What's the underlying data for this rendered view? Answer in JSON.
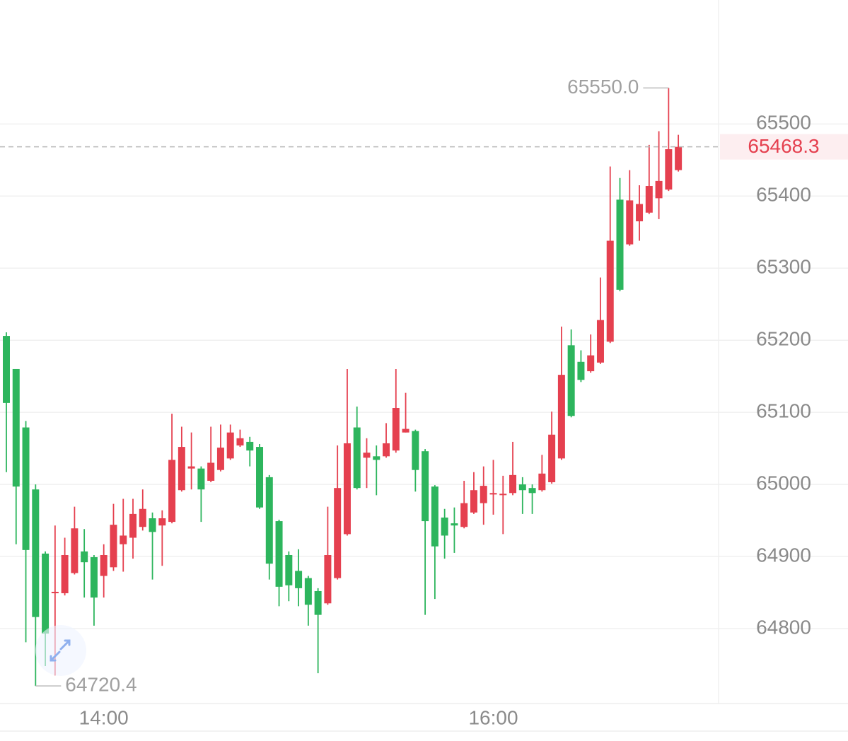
{
  "chart_data": {
    "type": "candlestick",
    "categories": [
      null,
      null,
      null,
      null,
      null,
      null,
      null,
      null,
      null,
      null,
      "14:00",
      null,
      null,
      null,
      null,
      null,
      null,
      null,
      null,
      null,
      null,
      null,
      null,
      null,
      null,
      null,
      null,
      null,
      null,
      null,
      null,
      null,
      null,
      null,
      null,
      null,
      null,
      null,
      null,
      null,
      null,
      null,
      null,
      null,
      null,
      null,
      null,
      null,
      null,
      null,
      "16:00",
      null,
      null,
      null,
      null,
      null,
      null,
      null,
      null,
      null,
      null,
      null,
      null,
      null,
      null,
      null,
      null,
      null,
      null,
      null
    ],
    "open": [
      65206,
      65160,
      65079,
      64993,
      64904,
      64849,
      64849,
      64877,
      64907,
      64899,
      64873,
      64885,
      64917,
      64926,
      64941,
      64953,
      64943,
      64948,
      64992,
      65022,
      65022,
      65005,
      65020,
      65036,
      65054,
      65059,
      65052,
      65010,
      64949,
      64902,
      64880,
      64870,
      64852,
      64835,
      64870,
      64931,
      65079,
      65037,
      65039,
      65039,
      65047,
      65072,
      65074,
      65046,
      64997,
      64954,
      64946,
      64941,
      64961,
      64974,
      64986,
      64986,
      64988,
      65000,
      64995,
      64992,
      65003,
      65036,
      65193,
      65170,
      65157,
      65169,
      65198,
      65395,
      65333,
      65365,
      65377,
      65397,
      65409,
      65436
    ],
    "high": [
      65211,
      65160,
      65088,
      65000,
      64907,
      64943,
      64926,
      64969,
      64938,
      64902,
      64917,
      64973,
      64980,
      64980,
      64993,
      64961,
      64964,
      65098,
      65080,
      65072,
      65025,
      65080,
      65083,
      65083,
      65076,
      65066,
      65056,
      65013,
      64951,
      64907,
      64910,
      64873,
      64856,
      64969,
      65054,
      65160,
      65108,
      65064,
      65054,
      65085,
      65160,
      65127,
      65076,
      65049,
      64999,
      64966,
      64968,
      65005,
      65017,
      65025,
      65034,
      65012,
      65059,
      65010,
      65000,
      65041,
      65101,
      65219,
      65215,
      65186,
      65208,
      65287,
      65441,
      65425,
      65436,
      65415,
      65471,
      65490,
      65550,
      65485
    ],
    "low": [
      65017,
      64917,
      64781,
      64720.4,
      64748,
      64735,
      64846,
      64875,
      64843,
      64804,
      64843,
      64880,
      64879,
      64897,
      64936,
      64868,
      64887,
      64946,
      64990,
      64993,
      64948,
      65003,
      65018,
      65034,
      65052,
      65025,
      64966,
      64868,
      64831,
      64838,
      64831,
      64804,
      64738,
      64833,
      64868,
      64929,
      64993,
      64995,
      64985,
      65037,
      65044,
      65072,
      64990,
      64819,
      64841,
      64897,
      64905,
      64939,
      64959,
      64944,
      64958,
      64931,
      64985,
      64959,
      64959,
      64990,
      65001,
      65034,
      65093,
      65142,
      65155,
      65167,
      65196,
      65268,
      65331,
      65338,
      65375,
      65368,
      65407,
      65434
    ],
    "close": [
      65113,
      64997,
      64909,
      64816,
      64793,
      64851,
      64902,
      64939,
      64892,
      64843,
      64902,
      64944,
      64929,
      64959,
      64966,
      64934,
      64953,
      65034,
      65052,
      65025,
      64993,
      65030,
      65051,
      65072,
      65064,
      65047,
      64968,
      64890,
      64858,
      64860,
      64856,
      64833,
      64819,
      64902,
      64995,
      65057,
      64995,
      65044,
      65034,
      65057,
      65106,
      65077,
      65020,
      64949,
      64914,
      64929,
      64943,
      64974,
      64992,
      64998,
      64988,
      64987,
      65013,
      64992,
      64988,
      65015,
      65069,
      65152,
      65095,
      65145,
      65179,
      65228,
      65338,
      65270,
      65394,
      65389,
      65414,
      65421,
      65465,
      65468.3
    ],
    "up_color": "#e5404f",
    "down_color": "#2db55d",
    "ylim": [
      64696,
      65672
    ],
    "yticks": [
      64800,
      64900,
      65000,
      65100,
      65200,
      65300,
      65400,
      65500
    ],
    "grid": true,
    "max_label": {
      "value": 65550,
      "label": "65550.0"
    },
    "min_label": {
      "value": 64720.4,
      "label": "64720.4"
    },
    "last_price": {
      "value": 65468.3,
      "label": "65468.3"
    }
  }
}
